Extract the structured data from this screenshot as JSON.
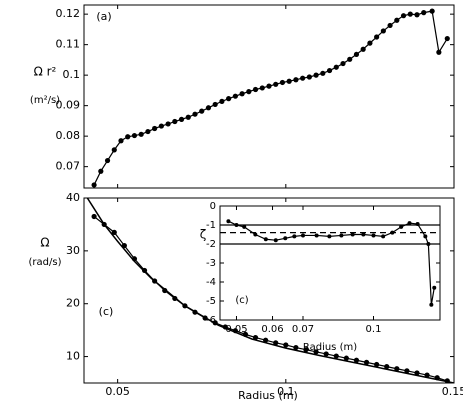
{
  "chart_data": [
    {
      "type": "line",
      "panel_label": "(a)",
      "ylabel": "Ω r²",
      "yunit": "(m²/s)",
      "xlim": [
        0.04,
        0.15
      ],
      "xticks": [
        0.05,
        0.1,
        0.15
      ],
      "ylim": [
        0.063,
        0.123
      ],
      "yticks": [
        0.07,
        0.08,
        0.09,
        0.1,
        0.11,
        0.12
      ],
      "series": [
        {
          "color": "#000000",
          "marker": true,
          "x": [
            0.043,
            0.045,
            0.047,
            0.049,
            0.051,
            0.053,
            0.055,
            0.057,
            0.059,
            0.061,
            0.063,
            0.065,
            0.067,
            0.069,
            0.071,
            0.073,
            0.075,
            0.077,
            0.079,
            0.081,
            0.083,
            0.085,
            0.087,
            0.089,
            0.091,
            0.093,
            0.095,
            0.097,
            0.099,
            0.101,
            0.103,
            0.105,
            0.107,
            0.109,
            0.111,
            0.113,
            0.115,
            0.117,
            0.119,
            0.121,
            0.123,
            0.125,
            0.127,
            0.129,
            0.131,
            0.133,
            0.135,
            0.137,
            0.139,
            0.141,
            0.1435,
            0.1455,
            0.148
          ],
          "values": [
            0.064,
            0.0685,
            0.072,
            0.0755,
            0.0785,
            0.0798,
            0.0802,
            0.0806,
            0.0815,
            0.0825,
            0.0833,
            0.084,
            0.0848,
            0.0855,
            0.0862,
            0.0872,
            0.0882,
            0.0893,
            0.0904,
            0.0914,
            0.0923,
            0.0931,
            0.0939,
            0.0946,
            0.0953,
            0.0958,
            0.0964,
            0.097,
            0.0976,
            0.098,
            0.0985,
            0.099,
            0.0994,
            0.1,
            0.1006,
            0.1015,
            0.1026,
            0.1038,
            0.1052,
            0.1068,
            0.1085,
            0.1105,
            0.1125,
            0.1145,
            0.1163,
            0.118,
            0.1195,
            0.12,
            0.1198,
            0.1205,
            0.121,
            0.1075,
            0.112
          ]
        }
      ]
    },
    {
      "type": "line",
      "panel_label": "(c)",
      "ylabel": "Ω",
      "yunit": "(rad/s)",
      "xlabel": "Radius  (m)",
      "xlim": [
        0.04,
        0.15
      ],
      "xticks": [
        0.05,
        0.1,
        0.15
      ],
      "xtick_labels": true,
      "ylim": [
        5,
        40
      ],
      "yticks": [
        10,
        20,
        30,
        40
      ],
      "series": [
        {
          "color": "#000000",
          "marker": true,
          "x": [
            0.043,
            0.046,
            0.049,
            0.052,
            0.055,
            0.058,
            0.061,
            0.064,
            0.067,
            0.07,
            0.073,
            0.076,
            0.079,
            0.082,
            0.085,
            0.088,
            0.091,
            0.094,
            0.097,
            0.1,
            0.103,
            0.106,
            0.109,
            0.112,
            0.115,
            0.118,
            0.121,
            0.124,
            0.127,
            0.13,
            0.133,
            0.136,
            0.139,
            0.142,
            0.145,
            0.148
          ],
          "values": [
            36.5,
            35,
            33.5,
            31,
            28.5,
            26.3,
            24.3,
            22.5,
            21,
            19.6,
            18.4,
            17.3,
            16.4,
            15.6,
            14.9,
            14.2,
            13.6,
            13.1,
            12.6,
            12.2,
            11.7,
            11.3,
            10.9,
            10.5,
            10.1,
            9.7,
            9.3,
            8.9,
            8.5,
            8.1,
            7.7,
            7.3,
            6.9,
            6.5,
            6,
            5.4
          ]
        },
        {
          "color": "#000000",
          "marker": false,
          "x": [
            0.04,
            0.043,
            0.046,
            0.05,
            0.055,
            0.06,
            0.07,
            0.08,
            0.09,
            0.1,
            0.11,
            0.12,
            0.13,
            0.14,
            0.15
          ],
          "values": [
            41,
            38,
            35,
            31.8,
            28,
            24.8,
            19.6,
            15.9,
            13.3,
            11.6,
            10.2,
            8.9,
            7.6,
            6.3,
            5
          ]
        }
      ]
    },
    {
      "type": "line",
      "panel_label": "(c)",
      "ylabel": "ζ",
      "xlabel": "Radius  (m)",
      "xscale": "log",
      "xlim": [
        0.046,
        0.14
      ],
      "xticks": [
        0.05,
        0.06,
        0.07,
        0.1
      ],
      "xtick_labels": true,
      "ylim": [
        -6,
        0
      ],
      "yticks": [
        0,
        -1,
        -2,
        -3,
        -4,
        -5,
        -6
      ],
      "reference_lines": [
        {
          "value": -1,
          "style": "solid"
        },
        {
          "value": -2,
          "style": "solid"
        },
        {
          "value": -1.4,
          "style": "dashed"
        }
      ],
      "series": [
        {
          "color": "#000000",
          "marker": true,
          "x": [
            0.048,
            0.05,
            0.052,
            0.055,
            0.058,
            0.061,
            0.064,
            0.067,
            0.07,
            0.075,
            0.08,
            0.085,
            0.09,
            0.095,
            0.1,
            0.105,
            0.11,
            0.115,
            0.12,
            0.125,
            0.13,
            0.132,
            0.134,
            0.136
          ],
          "values": [
            -0.8,
            -1,
            -1.1,
            -1.5,
            -1.75,
            -1.8,
            -1.7,
            -1.6,
            -1.55,
            -1.55,
            -1.6,
            -1.55,
            -1.5,
            -1.5,
            -1.55,
            -1.6,
            -1.4,
            -1.1,
            -0.9,
            -0.95,
            -1.6,
            -2,
            -5.2,
            -4.3
          ]
        }
      ]
    }
  ]
}
